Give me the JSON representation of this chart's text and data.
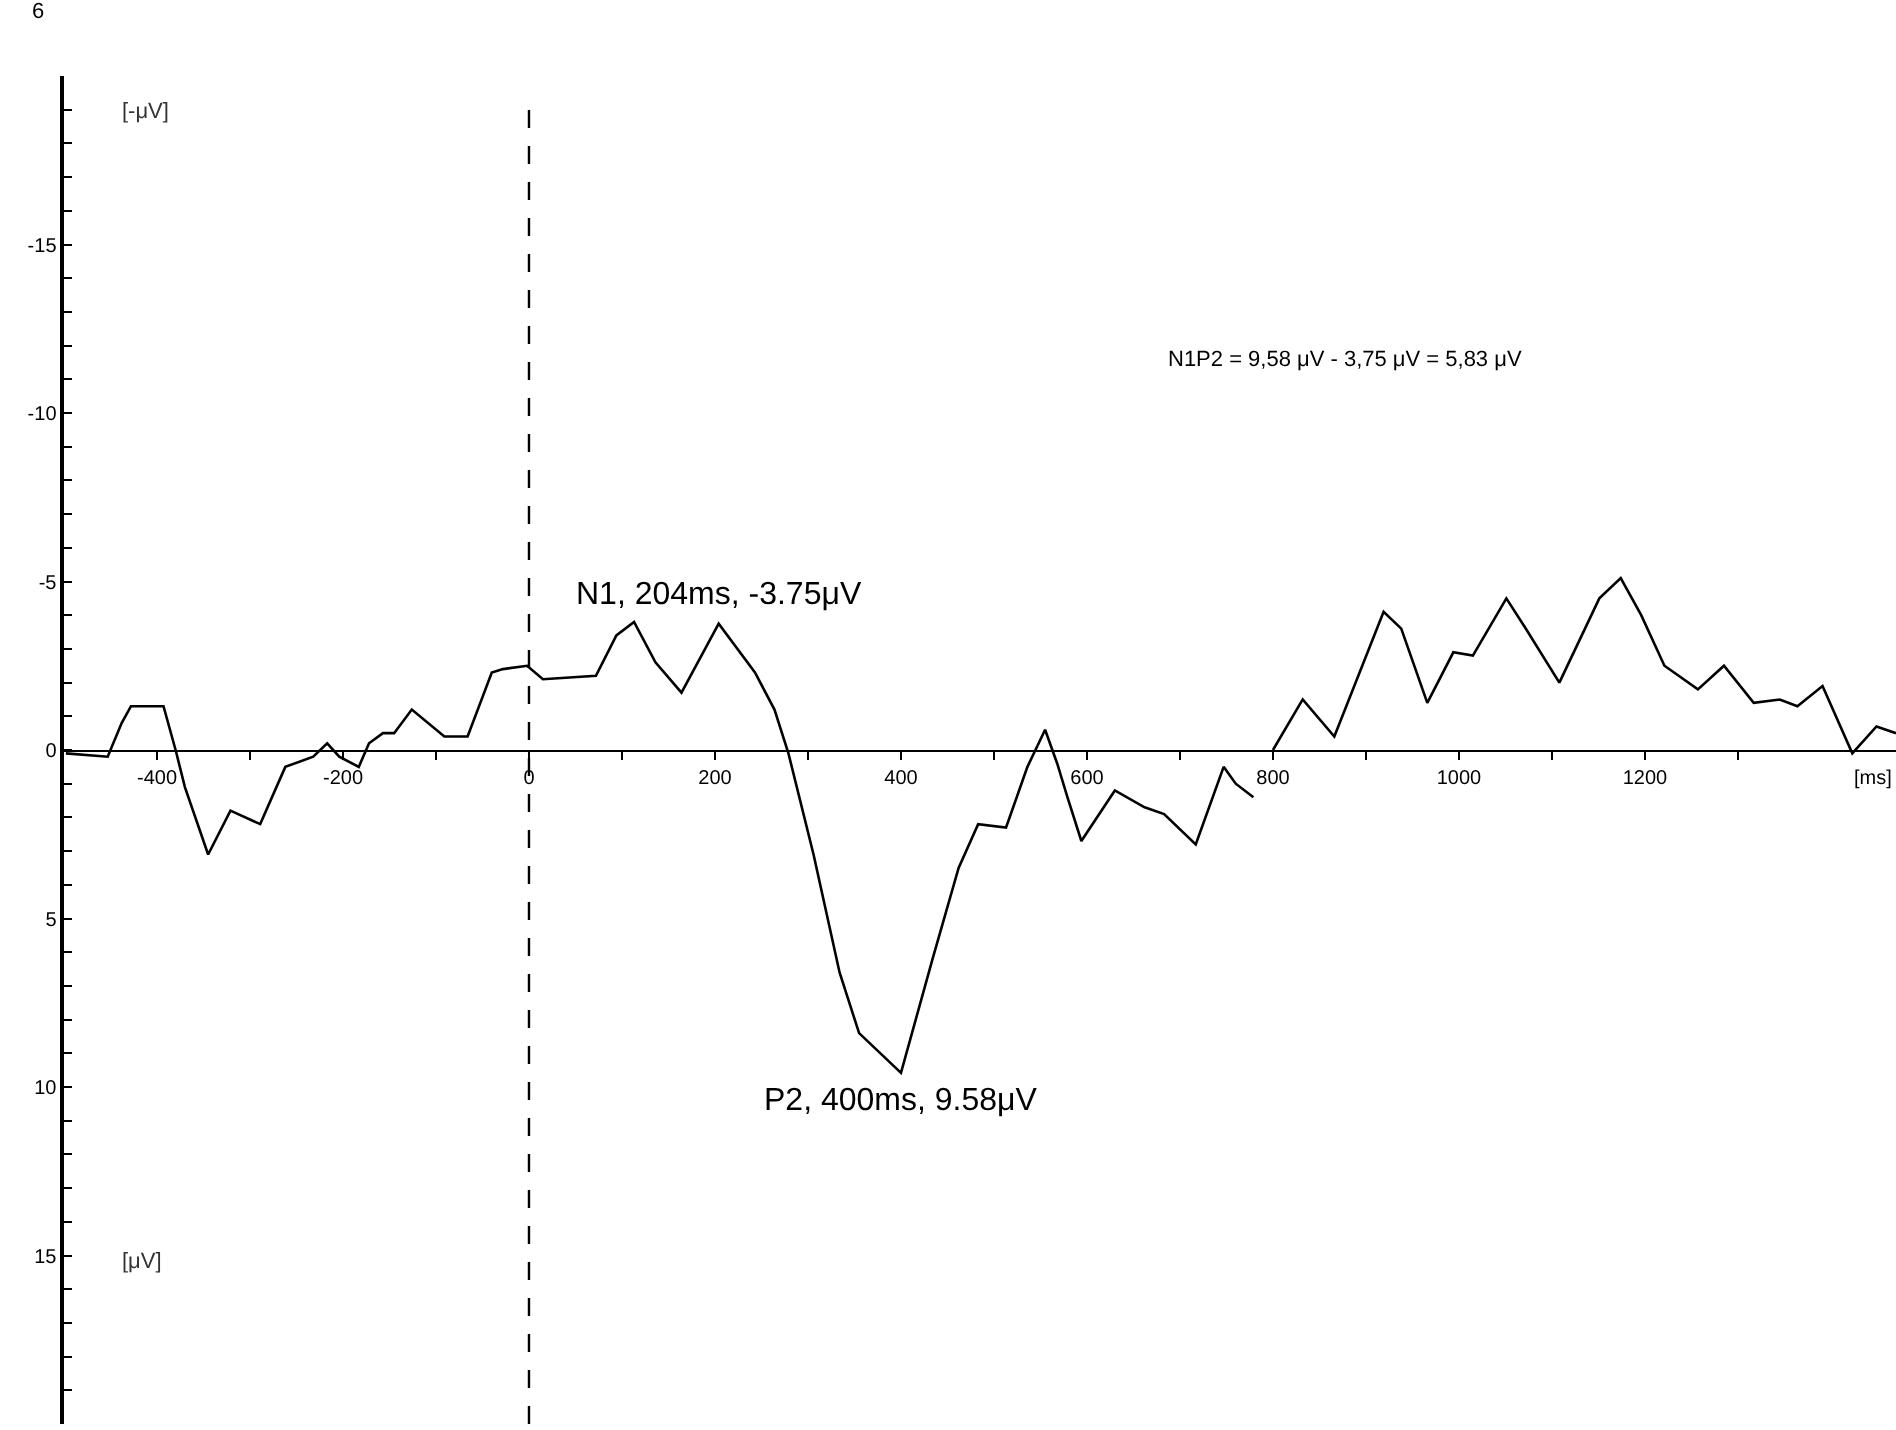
{
  "chart_data": {
    "type": "line",
    "ylabel": "[-μV]",
    "xlabel": "[ms]",
    "x": [
      -498,
      -453,
      -438,
      -428,
      -393,
      -380,
      -370,
      -345,
      -321,
      -289,
      -262,
      -232,
      -217,
      -204,
      -183,
      -172,
      -157,
      -145,
      -126,
      -91,
      -66,
      -40,
      -28,
      -2,
      15,
      72,
      94,
      113,
      136,
      164,
      204,
      243,
      264,
      279,
      306,
      334,
      355,
      400,
      434,
      462,
      483,
      513,
      536,
      555,
      568,
      579,
      594,
      630,
      662,
      683,
      717,
      747,
      760,
      779,
      790,
      800,
      832,
      866,
      919,
      938,
      966,
      994,
      1015,
      1051,
      1072,
      1108,
      1151,
      1174,
      1196,
      1221,
      1257,
      1285,
      1317,
      1345,
      1364,
      1391,
      1423,
      1449,
      1470
    ],
    "series": [
      {
        "color": "#000000",
        "values": [
          0.1,
          0.2,
          -0.8,
          -1.3,
          -1.3,
          0,
          1.1,
          3.1,
          1.8,
          2.2,
          0.5,
          0.2,
          -0.2,
          0.2,
          0.5,
          -0.2,
          -0.5,
          -0.5,
          -1.2,
          -0.4,
          -0.4,
          -2.3,
          -2.4,
          -2.5,
          -2.1,
          -2.2,
          -3.4,
          -3.8,
          -2.6,
          -1.7,
          -3.75,
          -2.3,
          -1.2,
          0.1,
          3.1,
          6.6,
          8.4,
          9.58,
          6.2,
          3.5,
          2.2,
          2.3,
          0.5,
          -0.6,
          0.4,
          1.4,
          2.7,
          1.2,
          1.7,
          1.9,
          2.8,
          0.5,
          1.0,
          1.4,
          null,
          0,
          -1.5,
          -0.4,
          -4.1,
          -3.6,
          -1.4,
          -2.9,
          -2.8,
          -4.5,
          -3.6,
          -2.0,
          -4.5,
          -5.1,
          -4.0,
          -2.5,
          -1.8,
          -2.5,
          -1.4,
          -1.5,
          -1.3,
          -1.9,
          0.1,
          -0.7,
          -0.5
        ]
      }
    ],
    "xlim": [
      -500,
      1470
    ],
    "ylim": [
      20,
      -20
    ],
    "xticks": [
      {
        "value": -400,
        "label": "-400"
      },
      {
        "value": -300,
        "label": null
      },
      {
        "value": -200,
        "label": "-200"
      },
      {
        "value": -100,
        "label": null
      },
      0,
      {
        "value": 100,
        "label": null
      },
      200,
      {
        "value": 300,
        "label": null
      },
      400,
      {
        "value": 500,
        "label": null
      },
      600,
      {
        "value": 700,
        "label": null
      },
      800,
      {
        "value": 900,
        "label": null
      },
      1000,
      {
        "value": 1100,
        "label": null
      },
      1200,
      {
        "value": 1300,
        "label": null
      }
    ],
    "yticks": [
      {
        "value": -19,
        "label": null
      },
      {
        "value": -18,
        "label": null
      },
      {
        "value": -17,
        "label": null
      },
      {
        "value": -16,
        "label": null
      },
      {
        "value": -15,
        "label": "-15"
      },
      {
        "value": -14,
        "label": null
      },
      {
        "value": -13,
        "label": null
      },
      {
        "value": -12,
        "label": null
      },
      {
        "value": -11,
        "label": null
      },
      {
        "value": -10,
        "label": "-10"
      },
      {
        "value": -9,
        "label": null
      },
      {
        "value": -8,
        "label": null
      },
      {
        "value": -7,
        "label": null
      },
      {
        "value": -6,
        "label": null
      },
      {
        "value": -5,
        "label": "-5"
      },
      {
        "value": -4,
        "label": null
      },
      {
        "value": -3,
        "label": null
      },
      {
        "value": -2,
        "label": null
      },
      {
        "value": -1,
        "label": null
      },
      0,
      {
        "value": 1,
        "label": null
      },
      {
        "value": 2,
        "label": null
      },
      {
        "value": 3,
        "label": null
      },
      {
        "value": 4,
        "label": null
      },
      5,
      {
        "value": 6,
        "label": null
      },
      {
        "value": 7,
        "label": null
      },
      {
        "value": 8,
        "label": null
      },
      {
        "value": 9,
        "label": null
      },
      10,
      {
        "value": 11,
        "label": null
      },
      {
        "value": 12,
        "label": null
      },
      {
        "value": 13,
        "label": null
      },
      {
        "value": 14,
        "label": null
      },
      15,
      {
        "value": 16,
        "label": null
      },
      {
        "value": 17,
        "label": null
      },
      {
        "value": 18,
        "label": null
      },
      {
        "value": 19,
        "label": null
      }
    ],
    "ref_lines": [
      {
        "axis": "x",
        "value": 0,
        "color": "#000000",
        "line_style": "dashed"
      }
    ],
    "annotations": [
      "6",
      "[μV]",
      "N1P2 = 9,58 μV - 3,75 μV = 5,83 μV",
      {
        "text": "N1, 204ms, -3.75μV",
        "x": 204,
        "y": -3.75
      },
      {
        "text": "P2, 400ms, 9.58μV",
        "x": 400,
        "y": 9.58
      }
    ],
    "marker": "none",
    "line_style": "solid"
  }
}
